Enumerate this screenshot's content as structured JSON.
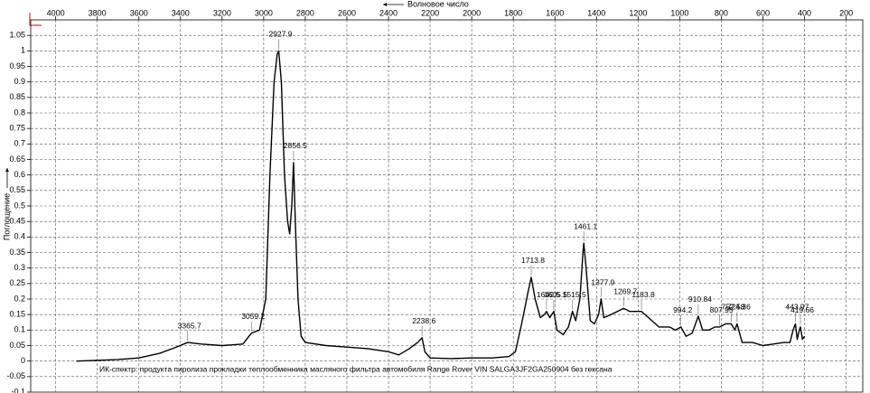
{
  "chart_data": {
    "type": "line",
    "x_label": "Волновое число",
    "y_label": "Поглощение",
    "annotation": "ИК-спектр: продукта пиролиза прокладки теплообменника масляного фильтра автомобиля Range Rover VIN SALGA3JF2GA250904 без гексана",
    "color": "#000000",
    "grid": true,
    "xlim": [
      4120,
      120
    ],
    "ylim": [
      -0.1,
      1.1
    ],
    "xticks": [
      4000,
      3800,
      3600,
      3400,
      3200,
      3000,
      2800,
      2600,
      2400,
      2200,
      2000,
      1800,
      1600,
      1400,
      1200,
      1000,
      800,
      600,
      400,
      200
    ],
    "yticks": [
      -0.1,
      -0.05,
      0,
      0.05,
      0.1,
      0.15,
      0.2,
      0.25,
      0.3,
      0.35,
      0.4,
      0.45,
      0.5,
      0.55,
      0.6,
      0.65,
      0.7,
      0.75,
      0.8,
      0.85,
      0.9,
      0.95,
      1,
      1.05
    ],
    "x": [
      3900,
      3700,
      3600,
      3500,
      3420,
      3365.7,
      3300,
      3200,
      3100,
      3059.2,
      3020,
      2990,
      2970,
      2950,
      2935,
      2927.9,
      2915,
      2900,
      2885,
      2875,
      2865,
      2856.5,
      2848,
      2835,
      2820,
      2800,
      2700,
      2600,
      2500,
      2400,
      2350,
      2300,
      2260,
      2238.6,
      2225,
      2200,
      2100,
      2000,
      1900,
      1820,
      1790,
      1760,
      1730,
      1713.8,
      1695,
      1670,
      1650,
      1640.5,
      1625,
      1605.5,
      1590,
      1560,
      1535,
      1515.5,
      1500,
      1480,
      1465,
      1461.1,
      1450,
      1430,
      1410,
      1390,
      1377.9,
      1365,
      1330,
      1300,
      1269.7,
      1240,
      1200,
      1183.8,
      1150,
      1100,
      1050,
      1020,
      994.2,
      970,
      940,
      910.84,
      890,
      860,
      830,
      807.95,
      780,
      752.58,
      735,
      724.36,
      700,
      650,
      600,
      550,
      500,
      470,
      455,
      443.97,
      435,
      425,
      419.66,
      410,
      400
    ],
    "values": [
      0.0,
      0.005,
      0.01,
      0.025,
      0.045,
      0.06,
      0.055,
      0.05,
      0.055,
      0.09,
      0.1,
      0.2,
      0.6,
      0.9,
      0.99,
      1.0,
      0.9,
      0.6,
      0.45,
      0.41,
      0.5,
      0.64,
      0.45,
      0.2,
      0.08,
      0.06,
      0.05,
      0.045,
      0.04,
      0.03,
      0.02,
      0.04,
      0.06,
      0.075,
      0.03,
      0.01,
      0.008,
      0.01,
      0.01,
      0.015,
      0.03,
      0.12,
      0.22,
      0.27,
      0.2,
      0.14,
      0.15,
      0.16,
      0.14,
      0.16,
      0.1,
      0.085,
      0.11,
      0.16,
      0.13,
      0.2,
      0.35,
      0.38,
      0.3,
      0.13,
      0.12,
      0.15,
      0.2,
      0.14,
      0.15,
      0.16,
      0.17,
      0.16,
      0.16,
      0.16,
      0.14,
      0.11,
      0.11,
      0.1,
      0.11,
      0.08,
      0.09,
      0.145,
      0.1,
      0.1,
      0.11,
      0.11,
      0.12,
      0.12,
      0.1,
      0.12,
      0.06,
      0.06,
      0.05,
      0.055,
      0.06,
      0.06,
      0.1,
      0.12,
      0.07,
      0.1,
      0.11,
      0.07,
      0.08
    ],
    "peaks": {
      "x": [
        3365.7,
        3059.2,
        2927.9,
        2856.5,
        2238.6,
        1713.8,
        1640.5,
        1605.5,
        1515.5,
        1461.1,
        1377.9,
        1269.7,
        1183.8,
        994.2,
        910.84,
        807.95,
        752.58,
        724.36,
        443.97,
        419.66
      ],
      "y": [
        0.06,
        0.09,
        1.0,
        0.64,
        0.075,
        0.27,
        0.16,
        0.16,
        0.16,
        0.38,
        0.2,
        0.17,
        0.16,
        0.11,
        0.145,
        0.11,
        0.12,
        0.12,
        0.12,
        0.11
      ]
    }
  }
}
